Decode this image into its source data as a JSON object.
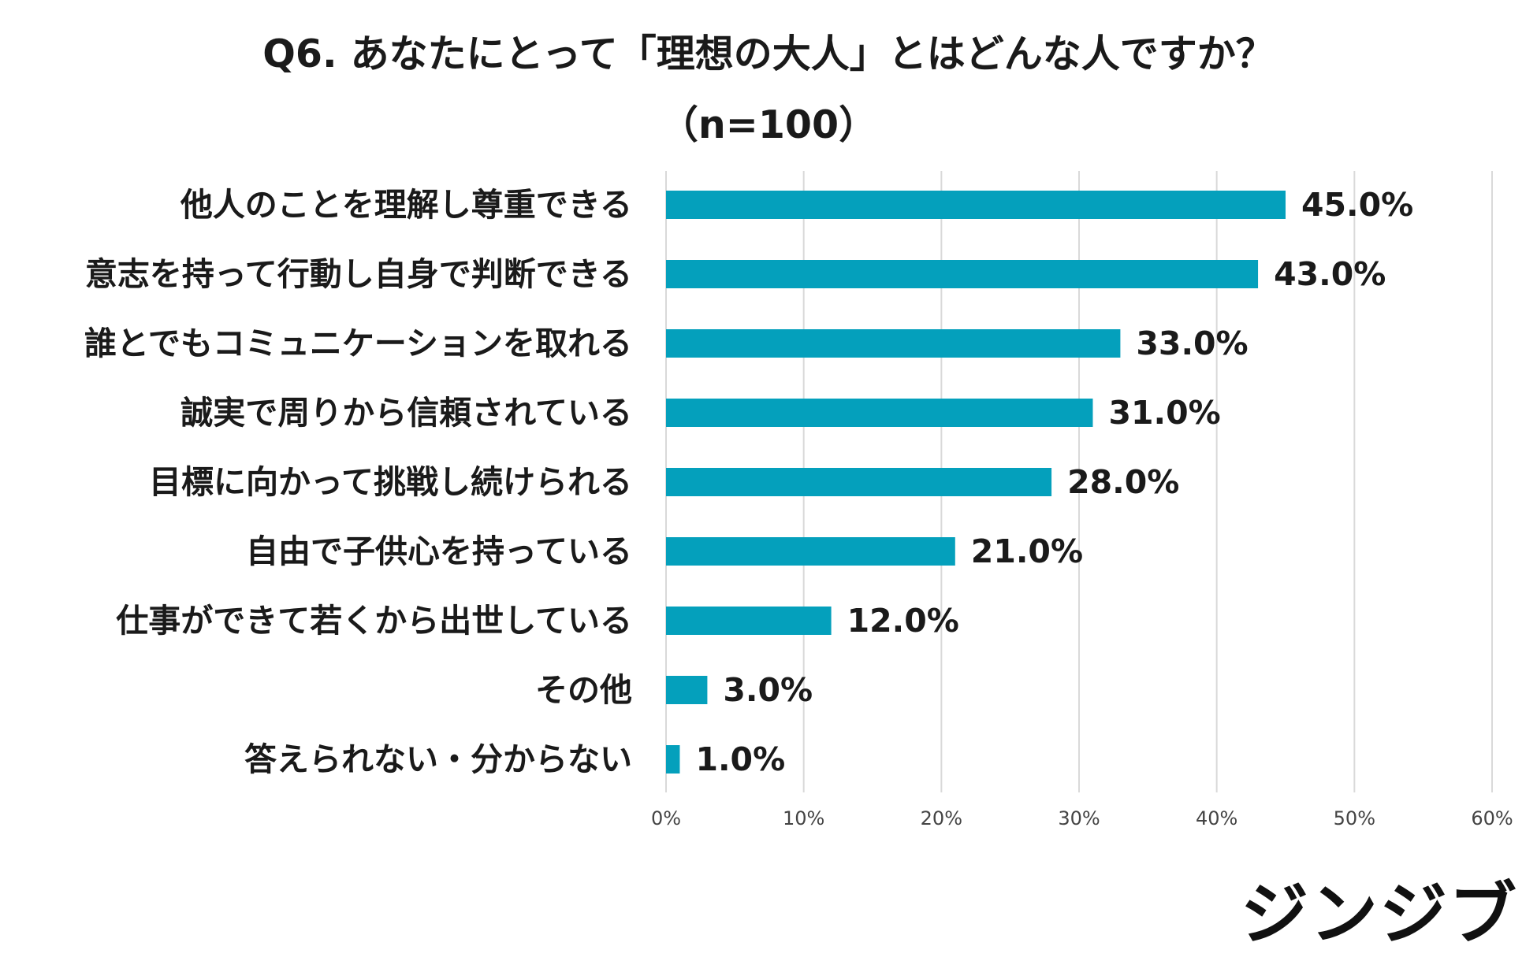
{
  "chart_data": {
    "type": "bar",
    "orientation": "horizontal",
    "title": "Q6.  あなたにとって「理想の大人」とはどんな人ですか？",
    "subtitle": "（n=100）",
    "categories": [
      "他人のことを理解し尊重できる",
      "意志を持って行動し自身で判断できる",
      "誰とでもコミュニケーションを取れる",
      "誠実で周りから信頼されている",
      "目標に向かって挑戦し続けられる",
      "自由で子供心を持っている",
      "仕事ができて若くから出世している",
      "その他",
      "答えられない・分からない"
    ],
    "values": [
      45.0,
      43.0,
      33.0,
      31.0,
      28.0,
      21.0,
      12.0,
      3.0,
      1.0
    ],
    "value_labels": [
      "45.0%",
      "43.0%",
      "33.0%",
      "31.0%",
      "28.0%",
      "21.0%",
      "12.0%",
      "3.0%",
      "1.0%"
    ],
    "xlim": [
      0,
      60
    ],
    "xticks": [
      0,
      10,
      20,
      30,
      40,
      50,
      60
    ],
    "xtick_labels": [
      "0%",
      "10%",
      "20%",
      "30%",
      "40%",
      "50%",
      "60%"
    ],
    "xlabel": "",
    "ylabel": "",
    "grid": "vertical",
    "legend": "none",
    "colors": {
      "bar": "#04a0bc",
      "grid": "#d9d9d9",
      "text": "#1a1a1a",
      "tick_text": "#444444"
    }
  },
  "branding": {
    "logo_text": "ジンジブ"
  }
}
